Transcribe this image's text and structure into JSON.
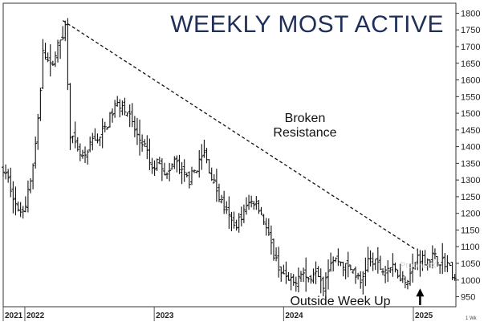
{
  "chart_data": {
    "type": "ohlc",
    "title": "WEEKLY MOST ACTIVE",
    "frequency_label": "1 Wk",
    "y_ticks": [
      950,
      1000,
      1050,
      1100,
      1150,
      1200,
      1250,
      1300,
      1350,
      1400,
      1450,
      1500,
      1550,
      1600,
      1650,
      1700,
      1750,
      1800
    ],
    "ylim": [
      920,
      1830
    ],
    "x_ticks": [
      "2021",
      "2022",
      "2023",
      "2024",
      "2025"
    ],
    "xlim": [
      "2021-11-01",
      "2025-05-01"
    ],
    "x_tick_dates": [
      "2021-11-01",
      "2022-01-01",
      "2023-01-01",
      "2024-01-01",
      "2025-01-01"
    ],
    "series_anchors": [
      [
        "2021-11-01",
        1330
      ],
      [
        "2021-11-22",
        1280
      ],
      [
        "2021-12-13",
        1200
      ],
      [
        "2022-01-03",
        1230
      ],
      [
        "2022-01-24",
        1340
      ],
      [
        "2022-02-10",
        1500
      ],
      [
        "2022-02-21",
        1700
      ],
      [
        "2022-03-14",
        1640
      ],
      [
        "2022-04-04",
        1700
      ],
      [
        "2022-04-25",
        1760
      ],
      [
        "2022-05-09",
        1440
      ],
      [
        "2022-05-30",
        1380
      ],
      [
        "2022-06-20",
        1360
      ],
      [
        "2022-07-11",
        1420
      ],
      [
        "2022-08-01",
        1430
      ],
      [
        "2022-08-22",
        1470
      ],
      [
        "2022-09-12",
        1520
      ],
      [
        "2022-10-03",
        1530
      ],
      [
        "2022-10-24",
        1490
      ],
      [
        "2022-11-14",
        1430
      ],
      [
        "2022-12-05",
        1400
      ],
      [
        "2022-12-26",
        1330
      ],
      [
        "2023-01-16",
        1360
      ],
      [
        "2023-02-06",
        1310
      ],
      [
        "2023-02-27",
        1360
      ],
      [
        "2023-03-20",
        1320
      ],
      [
        "2023-04-10",
        1300
      ],
      [
        "2023-05-01",
        1340
      ],
      [
        "2023-05-22",
        1380
      ],
      [
        "2023-06-12",
        1310
      ],
      [
        "2023-07-03",
        1250
      ],
      [
        "2023-07-24",
        1200
      ],
      [
        "2023-08-14",
        1160
      ],
      [
        "2023-09-04",
        1190
      ],
      [
        "2023-09-25",
        1230
      ],
      [
        "2023-10-16",
        1240
      ],
      [
        "2023-11-06",
        1180
      ],
      [
        "2023-11-27",
        1100
      ],
      [
        "2023-12-18",
        1040
      ],
      [
        "2024-01-08",
        1000
      ],
      [
        "2024-01-29",
        990
      ],
      [
        "2024-02-19",
        1030
      ],
      [
        "2024-03-11",
        1000
      ],
      [
        "2024-04-01",
        1040
      ],
      [
        "2024-04-22",
        990
      ],
      [
        "2024-05-13",
        1060
      ],
      [
        "2024-06-03",
        1060
      ],
      [
        "2024-06-24",
        1040
      ],
      [
        "2024-07-15",
        1030
      ],
      [
        "2024-08-05",
        990
      ],
      [
        "2024-08-26",
        1060
      ],
      [
        "2024-09-16",
        1050
      ],
      [
        "2024-10-07",
        1030
      ],
      [
        "2024-10-28",
        1040
      ],
      [
        "2024-11-18",
        1020
      ],
      [
        "2024-12-09",
        1000
      ],
      [
        "2024-12-30",
        1030
      ],
      [
        "2025-01-13",
        1070
      ],
      [
        "2025-02-03",
        1060
      ],
      [
        "2025-02-24",
        1070
      ],
      [
        "2025-03-17",
        1060
      ],
      [
        "2025-04-07",
        1050
      ],
      [
        "2025-04-28",
        1000
      ]
    ],
    "grid": false,
    "annotations": [
      {
        "text": "Broken",
        "date": "2023-11-01",
        "y": 1490
      },
      {
        "text": "Resistance",
        "date": "2023-11-01",
        "y": 1445
      },
      {
        "text": "Outside Week Up",
        "date": "2024-06-01",
        "y": 948
      }
    ],
    "trendline": {
      "start": [
        "2022-04-18",
        1778
      ],
      "end": [
        "2025-01-10",
        1090
      ],
      "style": "dashed"
    },
    "arrow": {
      "date": "2025-01-20",
      "from_y": 925,
      "to_y": 970
    }
  },
  "watermark": "ProphetX"
}
